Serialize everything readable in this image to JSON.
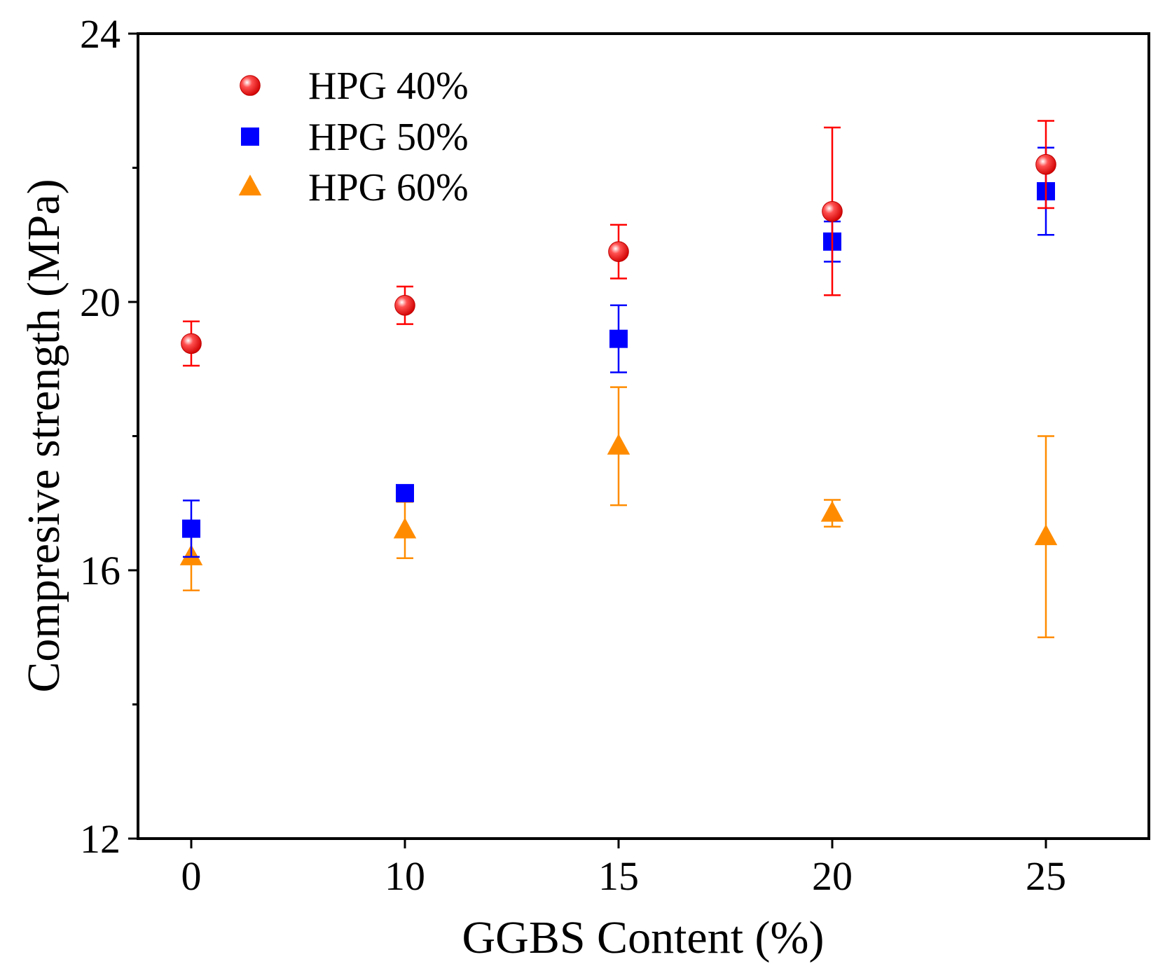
{
  "chart_data": {
    "type": "scatter",
    "title": "",
    "xlabel": "GGBS Content (%)",
    "ylabel": "Compresive strength (MPa)",
    "categories": [
      "0",
      "10",
      "15",
      "20",
      "25"
    ],
    "ylim": [
      12,
      24
    ],
    "y_ticks": [
      "12",
      "16",
      "20",
      "24"
    ],
    "y_minor_ticks": [
      14,
      18,
      22
    ],
    "grid": false,
    "legend_position": "top-left",
    "series": [
      {
        "name": "HPG 40%",
        "marker": "circle",
        "color": "#ff0000",
        "values": [
          19.38,
          19.95,
          20.75,
          21.35,
          22.05
        ],
        "errors": [
          0.33,
          0.28,
          0.4,
          1.25,
          0.65
        ]
      },
      {
        "name": "HPG 50%",
        "marker": "square",
        "color": "#0000ff",
        "values": [
          16.62,
          17.15,
          19.45,
          20.9,
          21.65
        ],
        "errors": [
          0.42,
          0.08,
          0.5,
          0.3,
          0.65
        ]
      },
      {
        "name": "HPG 60%",
        "marker": "triangle",
        "color": "#ff8c00",
        "values": [
          16.2,
          16.6,
          17.85,
          16.85,
          16.5
        ],
        "errors": [
          0.5,
          0.42,
          0.88,
          0.2,
          1.5
        ]
      }
    ]
  }
}
